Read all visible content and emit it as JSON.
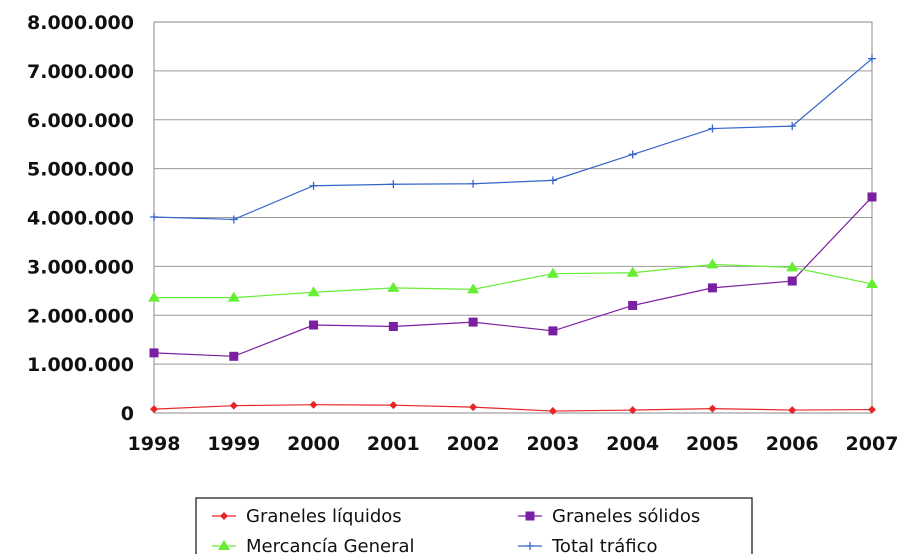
{
  "chart_data": {
    "type": "line",
    "title": "",
    "xlabel": "",
    "ylabel": "",
    "x": [
      "1998",
      "1999",
      "2000",
      "2001",
      "2002",
      "2003",
      "2004",
      "2005",
      "2006",
      "2007"
    ],
    "ylim": [
      0,
      8000000
    ],
    "yticks": [
      "0",
      "1.000.000",
      "2.000.000",
      "3.000.000",
      "4.000.000",
      "5.000.000",
      "6.000.000",
      "7.000.000",
      "8.000.000"
    ],
    "grid": true,
    "legend_position": "bottom",
    "series": [
      {
        "name": "Graneles líquidos",
        "color": "#e8262a",
        "marker": "diamond",
        "values": [
          80000,
          150000,
          170000,
          160000,
          120000,
          40000,
          60000,
          90000,
          60000,
          70000
        ]
      },
      {
        "name": "Graneles sólidos",
        "color": "#7b1fa2",
        "marker": "square",
        "values": [
          1230000,
          1160000,
          1800000,
          1770000,
          1860000,
          1680000,
          2200000,
          2560000,
          2700000,
          4420000
        ]
      },
      {
        "name": "Mercancía General",
        "color": "#66ee33",
        "marker": "triangle",
        "values": [
          2360000,
          2360000,
          2470000,
          2560000,
          2530000,
          2850000,
          2870000,
          3040000,
          2980000,
          2640000
        ]
      },
      {
        "name": "Total tráfico",
        "color": "#3366cc",
        "marker": "plus",
        "values": [
          4010000,
          3960000,
          4650000,
          4680000,
          4690000,
          4760000,
          5290000,
          5820000,
          5870000,
          7250000
        ]
      }
    ]
  }
}
